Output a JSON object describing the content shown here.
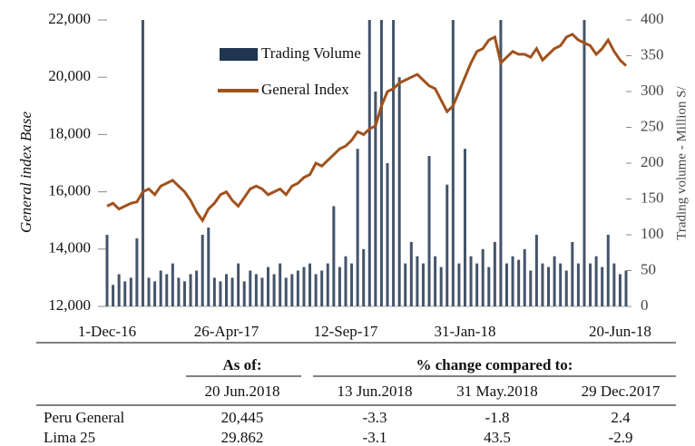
{
  "chart_data": {
    "type": "bar-line",
    "categories": [
      "1-Dec-16",
      null,
      null,
      null,
      null,
      null,
      null,
      null,
      null,
      null,
      null,
      null,
      null,
      null,
      null,
      null,
      null,
      null,
      null,
      null,
      "26-Apr-17",
      null,
      null,
      null,
      null,
      null,
      null,
      null,
      null,
      null,
      null,
      null,
      null,
      null,
      null,
      null,
      null,
      null,
      null,
      null,
      "12-Sep-17",
      null,
      null,
      null,
      null,
      null,
      null,
      null,
      null,
      null,
      null,
      null,
      null,
      null,
      null,
      null,
      null,
      null,
      null,
      null,
      "31-Jan-18",
      null,
      null,
      null,
      null,
      null,
      null,
      null,
      null,
      null,
      null,
      null,
      null,
      null,
      null,
      null,
      null,
      null,
      null,
      null,
      null,
      null,
      null,
      null,
      null,
      null,
      "20-Jun-18",
      null
    ],
    "series": [
      {
        "name": "Trading Volume",
        "color": "#44546a",
        "axis": "y2",
        "values": [
          100,
          30,
          45,
          35,
          40,
          95,
          400,
          40,
          35,
          50,
          45,
          60,
          40,
          35,
          45,
          50,
          100,
          110,
          40,
          35,
          45,
          40,
          60,
          35,
          50,
          45,
          40,
          55,
          45,
          60,
          40,
          45,
          50,
          55,
          60,
          45,
          50,
          60,
          140,
          55,
          70,
          60,
          220,
          80,
          400,
          300,
          400,
          200,
          400,
          320,
          60,
          90,
          70,
          60,
          210,
          70,
          55,
          170,
          400,
          60,
          220,
          70,
          60,
          80,
          55,
          90,
          400,
          60,
          70,
          65,
          80,
          50,
          100,
          60,
          55,
          70,
          60,
          50,
          90,
          60,
          400,
          60,
          70,
          55,
          100,
          60,
          45,
          50
        ]
      },
      {
        "name": "General Index",
        "color": "#a0521d",
        "axis": "y",
        "values": [
          15500,
          15600,
          15400,
          15500,
          15600,
          15650,
          16000,
          16100,
          15900,
          16200,
          16300,
          16400,
          16200,
          16000,
          15700,
          15300,
          15000,
          15400,
          15600,
          15900,
          16000,
          15700,
          15500,
          15800,
          16100,
          16200,
          16100,
          15900,
          16000,
          16100,
          15900,
          16200,
          16300,
          16500,
          16600,
          17000,
          16900,
          17100,
          17300,
          17500,
          17600,
          17800,
          18100,
          18000,
          18200,
          18300,
          19000,
          19500,
          19600,
          19800,
          19900,
          20000,
          20100,
          19900,
          19700,
          19600,
          19200,
          18800,
          19000,
          19500,
          20000,
          20500,
          20900,
          21000,
          21300,
          21400,
          20500,
          20700,
          20900,
          20800,
          20800,
          20700,
          21000,
          20600,
          20800,
          21000,
          21100,
          21400,
          21500,
          21300,
          21200,
          21100,
          20800,
          21000,
          21300,
          20900,
          20600,
          20400
        ]
      }
    ],
    "ylabel": "General index  Base",
    "y2label": "Trading volume - Million S/",
    "ylim": [
      12000,
      22000
    ],
    "yticks": [
      {
        "value": 12000,
        "label": "12,000"
      },
      {
        "value": 14000,
        "label": "14,000"
      },
      {
        "value": 16000,
        "label": "16,000"
      },
      {
        "value": 18000,
        "label": "18,000"
      },
      {
        "value": 20000,
        "label": "20,000"
      },
      {
        "value": 22000,
        "label": "22,000"
      }
    ],
    "y2lim": [
      0,
      400
    ],
    "y2ticks": [
      0,
      50,
      100,
      150,
      200,
      250,
      300,
      350,
      400
    ],
    "legend": "upper left"
  },
  "table": {
    "group_headers": [
      "As of:",
      "% change compared to:"
    ],
    "columns": [
      "20 Jun.2018",
      "13 Jun.2018",
      "31 May.2018",
      "29 Dec.2017"
    ],
    "rows": [
      [
        "Peru General",
        "20,445",
        "-3.3",
        "-1.8",
        "2.4"
      ],
      [
        "Lima 25",
        "29.862",
        "-3.1",
        "43.5",
        "-2.9"
      ]
    ]
  }
}
